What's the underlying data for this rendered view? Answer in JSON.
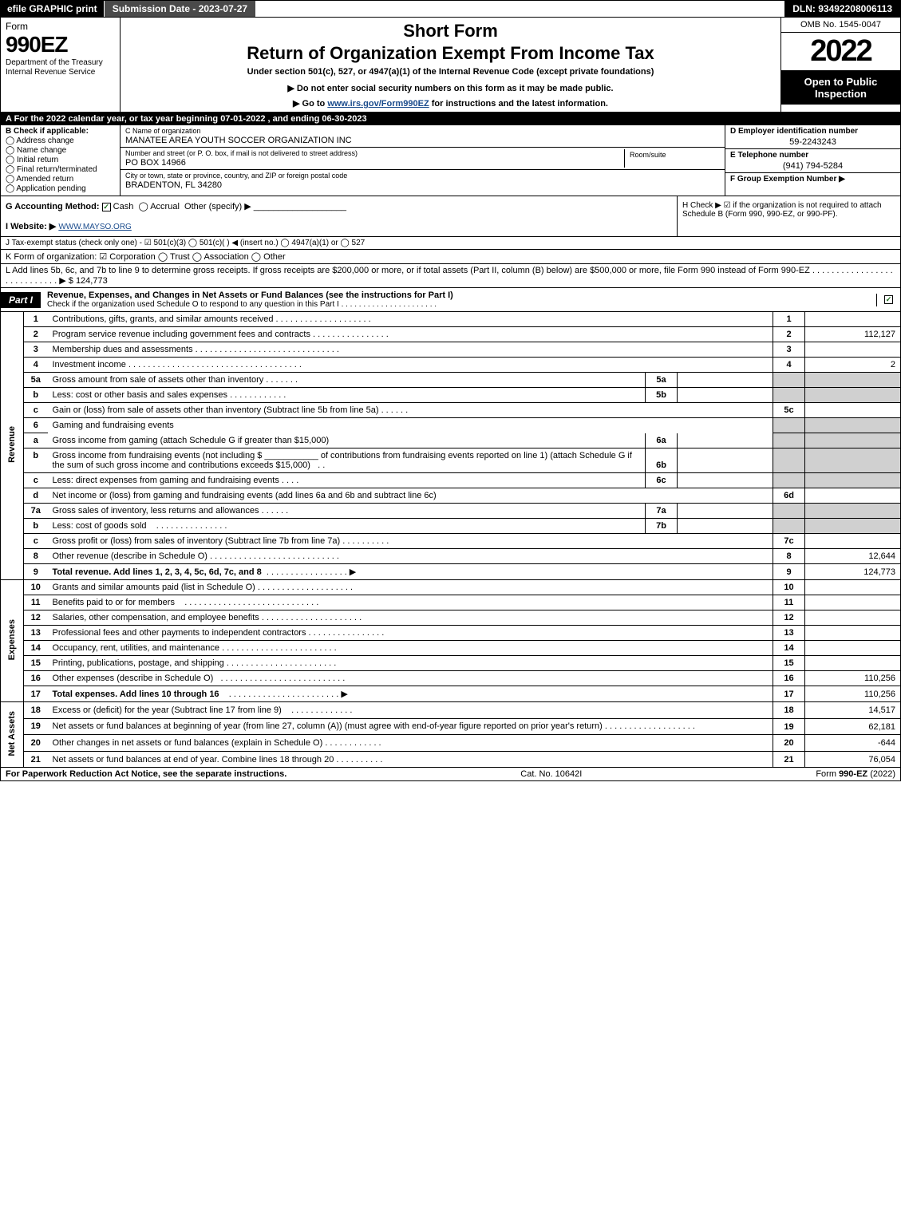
{
  "colors": {
    "black": "#000000",
    "white": "#ffffff",
    "shade": "#d0d0d0",
    "link": "#1a4b8c",
    "darkgray": "#4a4a4a",
    "checkgreen": "#1a6b1a"
  },
  "topbar": {
    "efile": "efile GRAPHIC print",
    "submission": "Submission Date - 2023-07-27",
    "dln": "DLN: 93492208006113"
  },
  "header": {
    "form": "Form",
    "form_num": "990EZ",
    "dept": "Department of the Treasury\nInternal Revenue Service",
    "short_form": "Short Form",
    "return_title": "Return of Organization Exempt From Income Tax",
    "under_section": "Under section 501(c), 527, or 4947(a)(1) of the Internal Revenue Code (except private foundations)",
    "donot": "▶ Do not enter social security numbers on this form as it may be made public.",
    "goto_pre": "▶ Go to ",
    "goto_link": "www.irs.gov/Form990EZ",
    "goto_post": " for instructions and the latest information.",
    "omb": "OMB No. 1545-0047",
    "year": "2022",
    "open_public": "Open to Public Inspection"
  },
  "section_a": "A  For the 2022 calendar year, or tax year beginning 07-01-2022 , and ending 06-30-2023",
  "section_b": {
    "label": "B  Check if applicable:",
    "items": [
      "Address change",
      "Name change",
      "Initial return",
      "Final return/terminated",
      "Amended return",
      "Application pending"
    ]
  },
  "section_c": {
    "name_label": "C Name of organization",
    "name": "MANATEE AREA YOUTH SOCCER ORGANIZATION INC",
    "street_label": "Number and street (or P. O. box, if mail is not delivered to street address)",
    "street": "PO BOX 14966",
    "room_label": "Room/suite",
    "city_label": "City or town, state or province, country, and ZIP or foreign postal code",
    "city": "BRADENTON, FL  34280"
  },
  "section_def": {
    "d_label": "D Employer identification number",
    "d_val": "59-2243243",
    "e_label": "E Telephone number",
    "e_val": "(941) 794-5284",
    "f_label": "F Group Exemption Number  ▶"
  },
  "section_g": {
    "label": "G Accounting Method:",
    "cash": "Cash",
    "accrual": "Accrual",
    "other": "Other (specify) ▶"
  },
  "section_h": "H  Check ▶ ☑ if the organization is not required to attach Schedule B (Form 990, 990-EZ, or 990-PF).",
  "section_i": {
    "label": "I Website: ▶",
    "val": "WWW.MAYSO.ORG"
  },
  "section_j": "J Tax-exempt status (check only one) - ☑ 501(c)(3)  ◯ 501(c)(  ) ◀ (insert no.)  ◯ 4947(a)(1) or  ◯ 527",
  "section_k": "K Form of organization:  ☑ Corporation  ◯ Trust  ◯ Association  ◯ Other",
  "section_l": {
    "text": "L Add lines 5b, 6c, and 7b to line 9 to determine gross receipts. If gross receipts are $200,000 or more, or if total assets (Part II, column (B) below) are $500,000 or more, file Form 990 instead of Form 990-EZ . . . . . . . . . . . . . . . . . . . . . . . . . . . . ▶ $",
    "amount": "124,773"
  },
  "part1": {
    "label": "Part I",
    "title": "Revenue, Expenses, and Changes in Net Assets or Fund Balances (see the instructions for Part I)",
    "sub": "Check if the organization used Schedule O to respond to any question in this Part I . . . . . . . . . . . . . . . . . . . . . ."
  },
  "side_labels": {
    "revenue": "Revenue",
    "expenses": "Expenses",
    "netassets": "Net Assets"
  },
  "lines": {
    "l1": {
      "n": "1",
      "d": "Contributions, gifts, grants, and similar amounts received",
      "box": "1",
      "amt": ""
    },
    "l2": {
      "n": "2",
      "d": "Program service revenue including government fees and contracts",
      "box": "2",
      "amt": "112,127"
    },
    "l3": {
      "n": "3",
      "d": "Membership dues and assessments",
      "box": "3",
      "amt": ""
    },
    "l4": {
      "n": "4",
      "d": "Investment income",
      "box": "4",
      "amt": "2"
    },
    "l5a": {
      "n": "5a",
      "d": "Gross amount from sale of assets other than inventory",
      "ibox": "5a"
    },
    "l5b": {
      "n": "b",
      "d": "Less: cost or other basis and sales expenses",
      "ibox": "5b"
    },
    "l5c": {
      "n": "c",
      "d": "Gain or (loss) from sale of assets other than inventory (Subtract line 5b from line 5a)",
      "box": "5c",
      "amt": ""
    },
    "l6": {
      "n": "6",
      "d": "Gaming and fundraising events"
    },
    "l6a": {
      "n": "a",
      "d": "Gross income from gaming (attach Schedule G if greater than $15,000)",
      "ibox": "6a"
    },
    "l6b": {
      "n": "b",
      "d1": "Gross income from fundraising events (not including $",
      "d2": "of contributions from fundraising events reported on line 1) (attach Schedule G if the sum of such gross income and contributions exceeds $15,000)",
      "ibox": "6b"
    },
    "l6c": {
      "n": "c",
      "d": "Less: direct expenses from gaming and fundraising events",
      "ibox": "6c"
    },
    "l6d": {
      "n": "d",
      "d": "Net income or (loss) from gaming and fundraising events (add lines 6a and 6b and subtract line 6c)",
      "box": "6d",
      "amt": ""
    },
    "l7a": {
      "n": "7a",
      "d": "Gross sales of inventory, less returns and allowances",
      "ibox": "7a"
    },
    "l7b": {
      "n": "b",
      "d": "Less: cost of goods sold",
      "ibox": "7b"
    },
    "l7c": {
      "n": "c",
      "d": "Gross profit or (loss) from sales of inventory (Subtract line 7b from line 7a)",
      "box": "7c",
      "amt": ""
    },
    "l8": {
      "n": "8",
      "d": "Other revenue (describe in Schedule O)",
      "box": "8",
      "amt": "12,644"
    },
    "l9": {
      "n": "9",
      "d": "Total revenue. Add lines 1, 2, 3, 4, 5c, 6d, 7c, and 8",
      "box": "9",
      "amt": "124,773"
    },
    "l10": {
      "n": "10",
      "d": "Grants and similar amounts paid (list in Schedule O)",
      "box": "10",
      "amt": ""
    },
    "l11": {
      "n": "11",
      "d": "Benefits paid to or for members",
      "box": "11",
      "amt": ""
    },
    "l12": {
      "n": "12",
      "d": "Salaries, other compensation, and employee benefits",
      "box": "12",
      "amt": ""
    },
    "l13": {
      "n": "13",
      "d": "Professional fees and other payments to independent contractors",
      "box": "13",
      "amt": ""
    },
    "l14": {
      "n": "14",
      "d": "Occupancy, rent, utilities, and maintenance",
      "box": "14",
      "amt": ""
    },
    "l15": {
      "n": "15",
      "d": "Printing, publications, postage, and shipping",
      "box": "15",
      "amt": ""
    },
    "l16": {
      "n": "16",
      "d": "Other expenses (describe in Schedule O)",
      "box": "16",
      "amt": "110,256"
    },
    "l17": {
      "n": "17",
      "d": "Total expenses. Add lines 10 through 16",
      "box": "17",
      "amt": "110,256"
    },
    "l18": {
      "n": "18",
      "d": "Excess or (deficit) for the year (Subtract line 17 from line 9)",
      "box": "18",
      "amt": "14,517"
    },
    "l19": {
      "n": "19",
      "d": "Net assets or fund balances at beginning of year (from line 27, column (A)) (must agree with end-of-year figure reported on prior year's return)",
      "box": "19",
      "amt": "62,181"
    },
    "l20": {
      "n": "20",
      "d": "Other changes in net assets or fund balances (explain in Schedule O)",
      "box": "20",
      "amt": "-644"
    },
    "l21": {
      "n": "21",
      "d": "Net assets or fund balances at end of year. Combine lines 18 through 20",
      "box": "21",
      "amt": "76,054"
    }
  },
  "footer": {
    "left": "For Paperwork Reduction Act Notice, see the separate instructions.",
    "center": "Cat. No. 10642I",
    "right_pre": "Form ",
    "right_bold": "990-EZ",
    "right_post": " (2022)"
  }
}
